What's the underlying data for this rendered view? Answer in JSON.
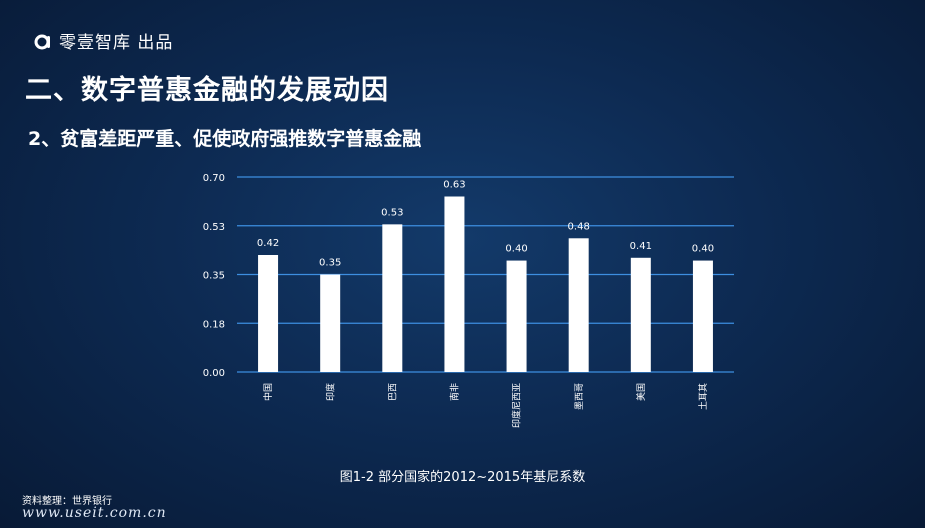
{
  "brand": {
    "logo_icon": "a-letter-logo-icon",
    "text": "零壹智库 出品"
  },
  "title": "二、数字普惠金融的发展动因",
  "subtitle": "2、贫富差距严重、促使政府强推数字普惠金融",
  "caption": "图1-2  部分国家的2012~2015年基尼系数",
  "source": "资料整理：世界银行",
  "watermark": "www.useit.com.cn",
  "colors": {
    "background": "#0d2a52",
    "bar": "#ffffff",
    "gridline": "#3d8ee0"
  },
  "chart_data": {
    "type": "bar",
    "categories": [
      "中国",
      "印度",
      "巴西",
      "南非",
      "印度尼西亚",
      "墨西哥",
      "美国",
      "土耳其"
    ],
    "values": [
      0.42,
      0.35,
      0.53,
      0.63,
      0.4,
      0.48,
      0.41,
      0.4
    ],
    "data_labels": [
      "0.42",
      "0.35",
      "0.53",
      "0.63",
      "0.40",
      "0.48",
      "0.41",
      "0.40"
    ],
    "yticks": [
      "0.00",
      "0.18",
      "0.35",
      "0.53",
      "0.70"
    ],
    "ylim": [
      0,
      0.7
    ],
    "grid": true,
    "title": "图1-2  部分国家的2012~2015年基尼系数",
    "xlabel": "",
    "ylabel": ""
  }
}
